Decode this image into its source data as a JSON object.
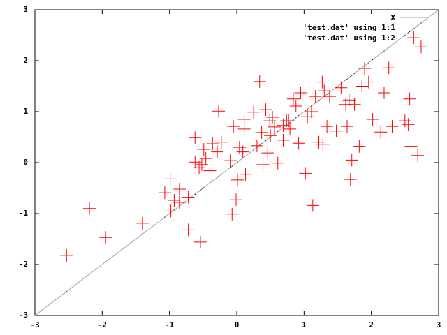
{
  "chart_data": {
    "type": "scatter",
    "legend": "top right",
    "xlim": [
      -3,
      3
    ],
    "ylim": [
      -3,
      3
    ],
    "xticks": [
      -3,
      -2,
      -1,
      0,
      1,
      2,
      3
    ],
    "yticks": [
      -3,
      -2,
      -1,
      0,
      1,
      2,
      3
    ],
    "series": [
      {
        "name": "x",
        "style": "line",
        "color": "#a0a0a0",
        "x": [
          -3,
          3
        ],
        "values": [
          -3,
          3
        ]
      },
      {
        "name": "'test.dat' using 1:1",
        "style": "dot",
        "color": "#000000",
        "x": [
          -2.53,
          -2.19,
          -1.95,
          -1.4,
          -1.07,
          -0.99,
          -0.98,
          -0.93,
          -0.85,
          -0.85,
          -0.72,
          -0.72,
          -0.54,
          -0.62,
          -0.62,
          -0.56,
          -0.52,
          -0.49,
          -0.46,
          -0.4,
          -0.36,
          -0.29,
          -0.27,
          -0.23,
          -0.09,
          -0.07,
          -0.01,
          -0.05,
          0.01,
          0.04,
          0.09,
          0.11,
          0.11,
          0.13,
          0.25,
          0.3,
          0.34,
          0.37,
          0.39,
          0.43,
          0.46,
          0.49,
          0.5,
          0.53,
          0.56,
          0.61,
          0.69,
          0.69,
          0.74,
          0.77,
          0.79,
          0.84,
          0.88,
          0.92,
          0.95,
          1.02,
          1.05,
          1.11,
          1.13,
          1.17,
          1.22,
          1.27,
          1.28,
          1.3,
          1.34,
          1.38,
          1.48,
          1.55,
          1.62,
          1.64,
          1.67,
          1.69,
          1.71,
          1.75,
          1.82,
          1.86,
          1.9,
          1.96,
          2.02,
          2.14,
          2.19,
          2.26,
          2.31,
          2.5,
          2.55,
          2.57,
          2.59,
          2.63,
          2.69,
          2.74
        ],
        "values": [
          -2.53,
          -2.19,
          -1.95,
          -1.4,
          -1.07,
          -0.99,
          -0.98,
          -0.93,
          -0.85,
          -0.85,
          -0.72,
          -0.72,
          -0.54,
          -0.62,
          -0.62,
          -0.56,
          -0.52,
          -0.49,
          -0.46,
          -0.4,
          -0.36,
          -0.29,
          -0.27,
          -0.23,
          -0.09,
          -0.07,
          -0.01,
          -0.05,
          0.01,
          0.04,
          0.09,
          0.11,
          0.11,
          0.13,
          0.25,
          0.3,
          0.34,
          0.37,
          0.39,
          0.43,
          0.46,
          0.49,
          0.5,
          0.53,
          0.56,
          0.61,
          0.69,
          0.69,
          0.74,
          0.77,
          0.79,
          0.84,
          0.88,
          0.92,
          0.95,
          1.02,
          1.05,
          1.11,
          1.13,
          1.17,
          1.22,
          1.27,
          1.28,
          1.3,
          1.34,
          1.38,
          1.48,
          1.55,
          1.62,
          1.64,
          1.67,
          1.69,
          1.71,
          1.75,
          1.82,
          1.86,
          1.9,
          1.96,
          2.02,
          2.14,
          2.19,
          2.26,
          2.31,
          2.5,
          2.55,
          2.57,
          2.59,
          2.63,
          2.69,
          2.74
        ]
      },
      {
        "name": "'test.dat' using 1:2",
        "style": "plus",
        "color": "#ff0000",
        "x": [
          -2.53,
          -2.19,
          -1.95,
          -1.4,
          -1.07,
          -0.99,
          -0.98,
          -0.93,
          -0.85,
          -0.85,
          -0.72,
          -0.72,
          -0.54,
          -0.62,
          -0.62,
          -0.56,
          -0.52,
          -0.49,
          -0.46,
          -0.4,
          -0.36,
          -0.29,
          -0.27,
          -0.23,
          -0.09,
          -0.07,
          -0.01,
          -0.05,
          0.01,
          0.04,
          0.09,
          0.11,
          0.11,
          0.13,
          0.25,
          0.3,
          0.34,
          0.37,
          0.39,
          0.43,
          0.46,
          0.49,
          0.5,
          0.53,
          0.56,
          0.61,
          0.69,
          0.69,
          0.74,
          0.77,
          0.79,
          0.84,
          0.88,
          0.92,
          0.95,
          1.02,
          1.05,
          1.11,
          1.13,
          1.17,
          1.22,
          1.27,
          1.28,
          1.3,
          1.34,
          1.38,
          1.48,
          1.55,
          1.62,
          1.64,
          1.67,
          1.69,
          1.71,
          1.75,
          1.82,
          1.86,
          1.9,
          1.96,
          2.02,
          2.14,
          2.19,
          2.26,
          2.31,
          2.5,
          2.55,
          2.57,
          2.59,
          2.63,
          2.69,
          2.74
        ],
        "values": [
          -1.82,
          -0.9,
          -1.47,
          -1.19,
          -0.59,
          -0.32,
          -0.95,
          -0.74,
          -0.52,
          -0.78,
          -0.68,
          -1.32,
          -1.56,
          0.49,
          0.01,
          -0.1,
          -0.04,
          0.26,
          0.08,
          -0.16,
          0.37,
          0.21,
          1.01,
          0.4,
          0.04,
          -1.01,
          -0.73,
          0.71,
          -0.34,
          0.3,
          0.21,
          0.85,
          0.66,
          -0.23,
          0.99,
          0.33,
          1.59,
          0.59,
          -0.04,
          1.04,
          0.19,
          0.82,
          0.53,
          0.89,
          0.7,
          -0.01,
          0.44,
          0.73,
          0.82,
          0.82,
          0.66,
          1.25,
          1.11,
          0.38,
          1.37,
          -0.21,
          0.9,
          1.0,
          -0.84,
          1.3,
          0.4,
          1.58,
          0.36,
          1.41,
          0.71,
          1.3,
          0.62,
          1.47,
          1.14,
          0.71,
          1.23,
          -0.33,
          0.05,
          1.14,
          0.32,
          1.5,
          1.85,
          1.58,
          0.85,
          0.6,
          1.37,
          1.86,
          0.71,
          0.82,
          0.75,
          1.25,
          0.32,
          2.45,
          0.14,
          2.27
        ]
      }
    ]
  }
}
